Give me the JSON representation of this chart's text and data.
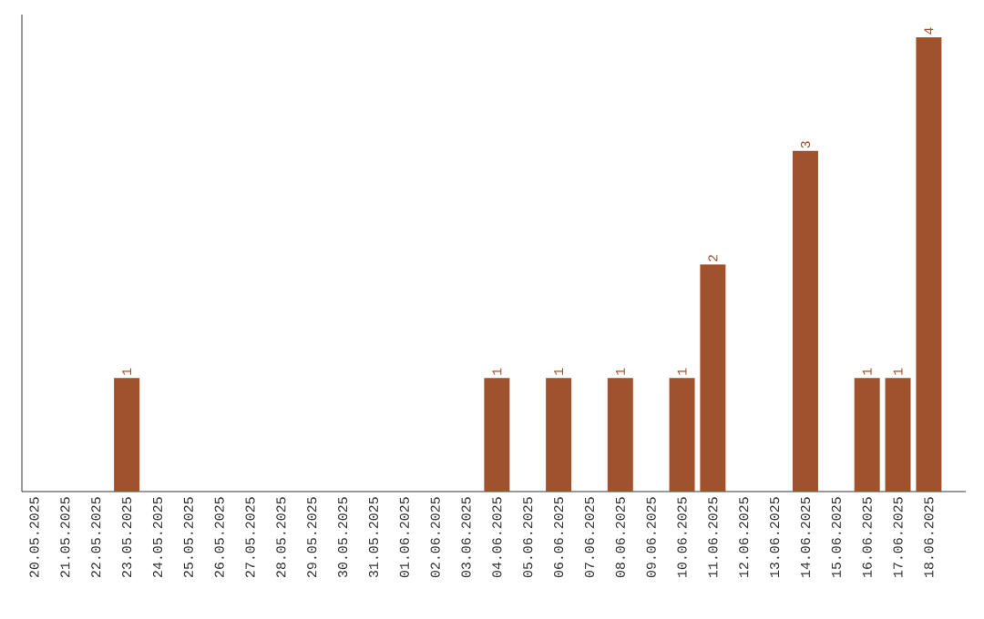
{
  "chart_data": {
    "type": "bar",
    "categories": [
      "20.05.2025",
      "21.05.2025",
      "22.05.2025",
      "23.05.2025",
      "24.05.2025",
      "25.05.2025",
      "26.05.2025",
      "27.05.2025",
      "28.05.2025",
      "29.05.2025",
      "30.05.2025",
      "31.05.2025",
      "01.06.2025",
      "02.06.2025",
      "03.06.2025",
      "04.06.2025",
      "05.06.2025",
      "06.06.2025",
      "07.06.2025",
      "08.06.2025",
      "09.06.2025",
      "10.06.2025",
      "11.06.2025",
      "12.06.2025",
      "13.06.2025",
      "14.06.2025",
      "15.06.2025",
      "16.06.2025",
      "17.06.2025",
      "18.06.2025"
    ],
    "values": [
      0,
      0,
      0,
      1,
      0,
      0,
      0,
      0,
      0,
      0,
      0,
      0,
      0,
      0,
      0,
      1,
      0,
      1,
      0,
      1,
      0,
      1,
      2,
      0,
      0,
      3,
      0,
      1,
      1,
      4
    ],
    "value_labels": [
      null,
      null,
      null,
      "1",
      null,
      null,
      null,
      null,
      null,
      null,
      null,
      null,
      null,
      null,
      null,
      "1",
      null,
      "1",
      null,
      "1",
      null,
      "1",
      "2",
      null,
      null,
      "3",
      null,
      "1",
      "1",
      "4"
    ],
    "color": "#a0522d"
  }
}
